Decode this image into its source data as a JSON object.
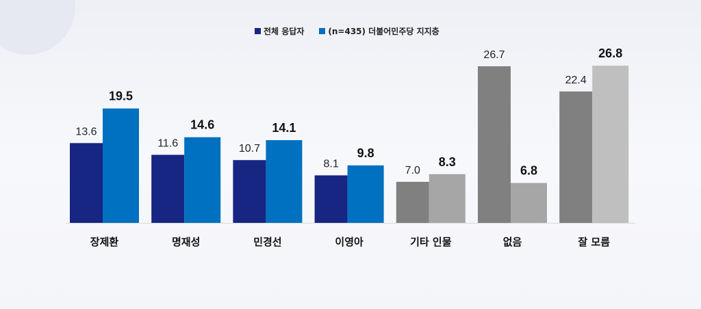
{
  "chart_data": {
    "type": "bar",
    "categories": [
      "장제환",
      "명재성",
      "민경선",
      "이영아",
      "기타 인물",
      "없음",
      "잘 모름"
    ],
    "series": [
      {
        "name": "전체 응답자",
        "values": [
          13.6,
          11.6,
          10.7,
          8.1,
          7.0,
          26.7,
          22.4
        ]
      },
      {
        "name": "(n=435) 더불어민주당 지지층",
        "values": [
          19.5,
          14.6,
          14.1,
          9.8,
          8.3,
          6.8,
          26.8
        ]
      }
    ],
    "colors": {
      "series1": [
        "#172583",
        "#172583",
        "#172583",
        "#172583",
        "#808080",
        "#808080",
        "#808080"
      ],
      "series2": [
        "#0070c0",
        "#0070c0",
        "#0070c0",
        "#0070c0",
        "#a6a6a6",
        "#a6a6a6",
        "#bfbfbf"
      ]
    },
    "ylim": [
      0,
      27
    ],
    "grid": false,
    "legend": "top-center",
    "xlabel": "",
    "ylabel": "",
    "title": ""
  }
}
